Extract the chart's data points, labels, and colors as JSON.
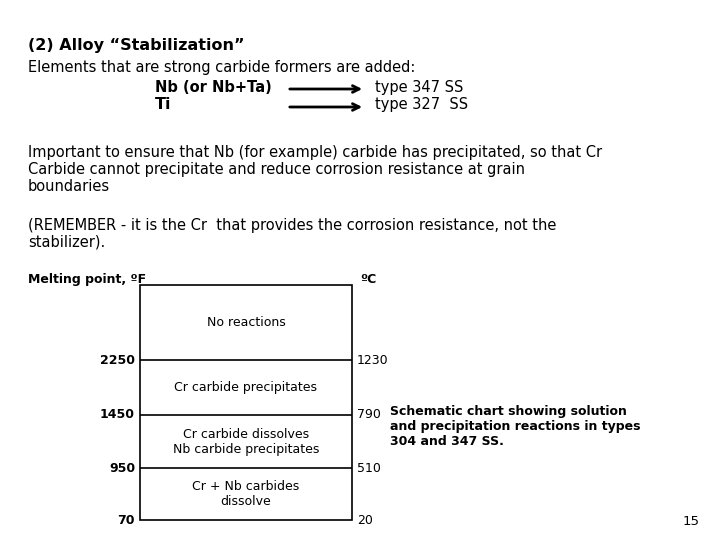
{
  "background_color": "#ffffff",
  "title_bold": "(2) Alloy “Stabilization”",
  "line1": "Elements that are strong carbide formers are added:",
  "line2_left": "Nb (or Nb+Ta)",
  "line2_right": "type 347 SS",
  "line3_left": "Ti",
  "line3_right": "type 327  SS",
  "para2_line1": "Important to ensure that Nb (for example) carbide has precipitated, so that Cr",
  "para2_line2": "Carbide cannot precipitate and reduce corrosion resistance at grain",
  "para2_line3": "boundaries",
  "para3_line1": "(REMEMBER - it is the Cr  that provides the corrosion resistance, not the",
  "para3_line2": "stabilizer).",
  "melting_label": "Melting point, ºF",
  "celsius_label": "ºC",
  "left_temps": [
    "2250",
    "1450",
    "950",
    "70"
  ],
  "right_temps": [
    "1230",
    "790",
    "510",
    "20"
  ],
  "box_labels": [
    "Cr + Nb carbides\ndissolve",
    "Cr carbide dissolves\nNb carbide precipitates",
    "Cr carbide precipitates",
    "No reactions"
  ],
  "schematic_text_line1": "Schematic chart showing solution",
  "schematic_text_line2": "and precipitation reactions in types",
  "schematic_text_line3": "304 and 347 SS.",
  "page_number": "15",
  "font_size_title": 11.5,
  "font_size_body": 10.5,
  "font_size_small": 9.5,
  "font_size_diagram": 9.0
}
